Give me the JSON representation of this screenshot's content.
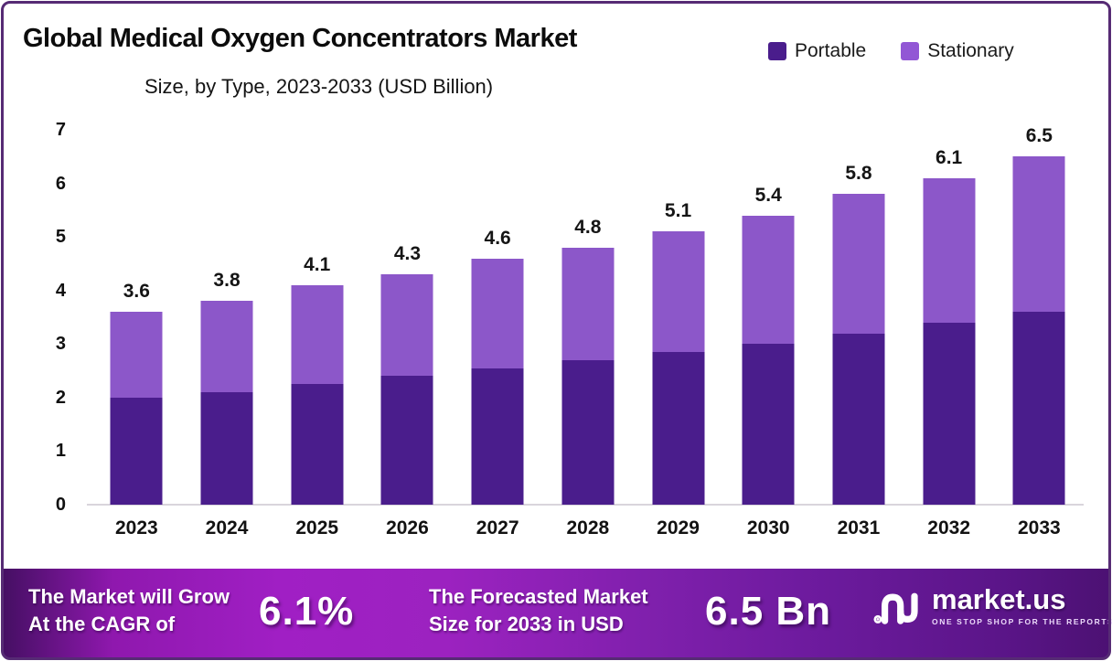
{
  "meta": {
    "title": "Global Medical Oxygen Concentrators Market",
    "subtitle": "Size, by Type, 2023-2033 (USD Billion)"
  },
  "colors": {
    "portable": "#4a1d8c",
    "stationary": "#8c57c9",
    "legend_portable": "#4a1d8c",
    "legend_stationary": "#9257d5",
    "border": "#562b74",
    "banner_gradient_left": "#450f63",
    "banner_gradient_mid": "#a01fc4",
    "banner_gradient_right": "#4c1173",
    "axis_line": "#d9d5dc"
  },
  "legend": [
    {
      "label": "Portable",
      "color": "#4a1d8c"
    },
    {
      "label": "Stationary",
      "color": "#9257d5"
    }
  ],
  "chart_data": {
    "type": "bar",
    "stacked": true,
    "title": "Global Medical Oxygen Concentrators Market Size, by Type, 2023-2033 (USD Billion)",
    "categories": [
      "2023",
      "2024",
      "2025",
      "2026",
      "2027",
      "2028",
      "2029",
      "2030",
      "2031",
      "2032",
      "2033"
    ],
    "series": [
      {
        "name": "Portable",
        "color": "#4a1d8c",
        "values": [
          2.0,
          2.1,
          2.25,
          2.4,
          2.55,
          2.7,
          2.85,
          3.0,
          3.2,
          3.4,
          3.6
        ]
      },
      {
        "name": "Stationary",
        "color": "#8c57c9",
        "values": [
          1.6,
          1.7,
          1.85,
          1.9,
          2.05,
          2.1,
          2.25,
          2.4,
          2.6,
          2.7,
          2.9
        ]
      }
    ],
    "totals": [
      3.6,
      3.8,
      4.1,
      4.3,
      4.6,
      4.8,
      5.1,
      5.4,
      5.8,
      6.1,
      6.5
    ],
    "total_labels": [
      "3.6",
      "3.8",
      "4.1",
      "4.3",
      "4.6",
      "4.8",
      "5.1",
      "5.4",
      "5.8",
      "6.1",
      "6.5"
    ],
    "ylim": [
      0,
      7
    ],
    "yticks": [
      0,
      1,
      2,
      3,
      4,
      5,
      6,
      7
    ],
    "xlabel": "",
    "ylabel": "",
    "grid": false,
    "legend_position": "top-right"
  },
  "banner": {
    "cagr_label_line1": "The Market will Grow",
    "cagr_label_line2": "At the CAGR of",
    "cagr_value": "6.1%",
    "forecast_label_line1": "The Forecasted Market",
    "forecast_label_line2": "Size for 2033 in USD",
    "forecast_value": "6.5 Bn",
    "brand_name": "market.us",
    "brand_tagline": "ONE STOP SHOP FOR THE REPORTS"
  }
}
